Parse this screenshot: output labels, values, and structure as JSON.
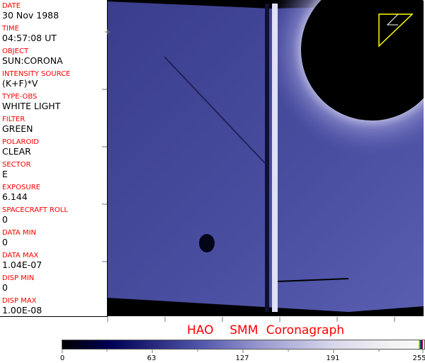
{
  "fields": [
    {
      "label": "DATE",
      "value": "30 Nov 1988"
    },
    {
      "label": "TIME",
      "value": "04:57:08 UT"
    },
    {
      "label": "OBJECT",
      "value": "SUN:CORONA"
    },
    {
      "label": "INTENSITY SOURCE",
      "value": "(K+F)*V"
    },
    {
      "label": "TYPE-OBS",
      "value": "WHITE LIGHT"
    },
    {
      "label": "FILTER",
      "value": "GREEN"
    },
    {
      "label": "POLAROID",
      "value": "CLEAR"
    },
    {
      "label": "SECTOR",
      "value": "E"
    },
    {
      "label": "EXPOSURE",
      "value": "6.144"
    },
    {
      "label": "SPACECRAFT ROLL",
      "value": "0"
    },
    {
      "label": "DATA MIN",
      "value": "0"
    },
    {
      "label": "DATA MAX",
      "value": "1.04E-07"
    },
    {
      "label": "DISP MIN",
      "value": "0"
    },
    {
      "label": "DISP MAX",
      "value": "1.00E-08"
    }
  ],
  "title": "HAO  SMM Coronagraph",
  "colorbar": {
    "labels": [
      "0",
      "63",
      "127",
      "191",
      "255"
    ],
    "colors": {
      "low": "#000000",
      "mid": "#5055aa",
      "high": "#f8f8f8",
      "label": "#ff0000"
    }
  }
}
